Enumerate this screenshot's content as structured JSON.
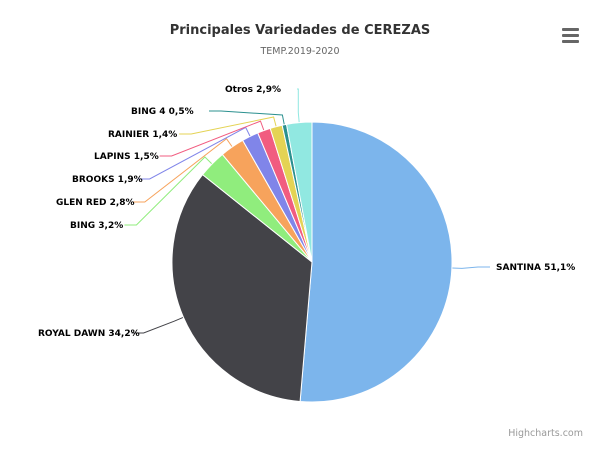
{
  "chart_data": {
    "type": "pie",
    "title": "Principales Variedades de CEREZAS",
    "subtitle": "TEMP.2019-2020",
    "categories": [
      "SANTINA",
      "ROYAL DAWN",
      "BING",
      "GLEN RED",
      "BROOKS",
      "LAPINS",
      "RAINIER",
      "BING 4",
      "Otros"
    ],
    "values": [
      51.1,
      34.2,
      3.2,
      2.8,
      1.9,
      1.5,
      1.4,
      0.5,
      2.9
    ],
    "labels": [
      "SANTINA 51,1%",
      "ROYAL DAWN 34,2%",
      "BING 3,2%",
      "GLEN RED 2,8%",
      "BROOKS 1,9%",
      "LAPINS 1,5%",
      "RAINIER 1,4%",
      "BING 4 0,5%",
      "Otros 2,9%"
    ],
    "colors": [
      "#7cb5ec",
      "#434348",
      "#90ed7d",
      "#f7a35c",
      "#8085e9",
      "#f15c80",
      "#e4d354",
      "#2b908f",
      "#91e8e1"
    ],
    "legend": "none",
    "grid": false
  },
  "menu": {
    "icon": "hamburger-menu-icon"
  },
  "credits": {
    "text": "Highcharts.com"
  }
}
